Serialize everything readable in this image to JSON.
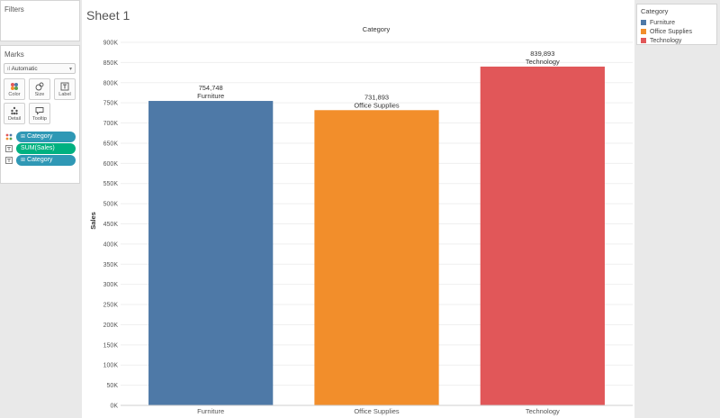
{
  "filters": {
    "title": "Filters"
  },
  "marks": {
    "title": "Marks",
    "mark_type": "Automatic",
    "cards": [
      {
        "label": "Color",
        "icon": "color-palette-icon"
      },
      {
        "label": "Size",
        "icon": "size-icon"
      },
      {
        "label": "Label",
        "icon": "label-icon"
      },
      {
        "label": "Detail",
        "icon": "detail-icon"
      },
      {
        "label": "Tooltip",
        "icon": "tooltip-icon"
      }
    ],
    "pills": [
      {
        "icon": "color-mark-icon",
        "label": "Category",
        "kind": "dimension"
      },
      {
        "icon": "label-mark-icon",
        "label": "SUM(Sales)",
        "kind": "measure"
      },
      {
        "icon": "label-mark-icon",
        "label": "Category",
        "kind": "dimension"
      }
    ]
  },
  "sheet": {
    "title": "Sheet 1"
  },
  "legend": {
    "title": "Category",
    "items": [
      {
        "label": "Furniture",
        "color": "#4e79a7"
      },
      {
        "label": "Office Supplies",
        "color": "#f28e2b"
      },
      {
        "label": "Technology",
        "color": "#e15759"
      }
    ]
  },
  "chart_data": {
    "type": "bar",
    "title": "",
    "header": "Category",
    "xlabel": "",
    "ylabel": "Sales",
    "categories": [
      "Furniture",
      "Office Supplies",
      "Technology"
    ],
    "values": [
      754748,
      731893,
      839893
    ],
    "value_labels": [
      "754,748",
      "731,893",
      "839,893"
    ],
    "colors": [
      "#4e79a7",
      "#f28e2b",
      "#e15759"
    ],
    "ylim": [
      0,
      900000
    ],
    "yticks": [
      0,
      50000,
      100000,
      150000,
      200000,
      250000,
      300000,
      350000,
      400000,
      450000,
      500000,
      550000,
      600000,
      650000,
      700000,
      750000,
      800000,
      850000,
      900000
    ],
    "ytick_labels": [
      "0K",
      "50K",
      "100K",
      "150K",
      "200K",
      "250K",
      "300K",
      "350K",
      "400K",
      "450K",
      "500K",
      "550K",
      "600K",
      "650K",
      "700K",
      "750K",
      "800K",
      "850K",
      "900K"
    ],
    "grid": true,
    "legend_position": "right"
  }
}
